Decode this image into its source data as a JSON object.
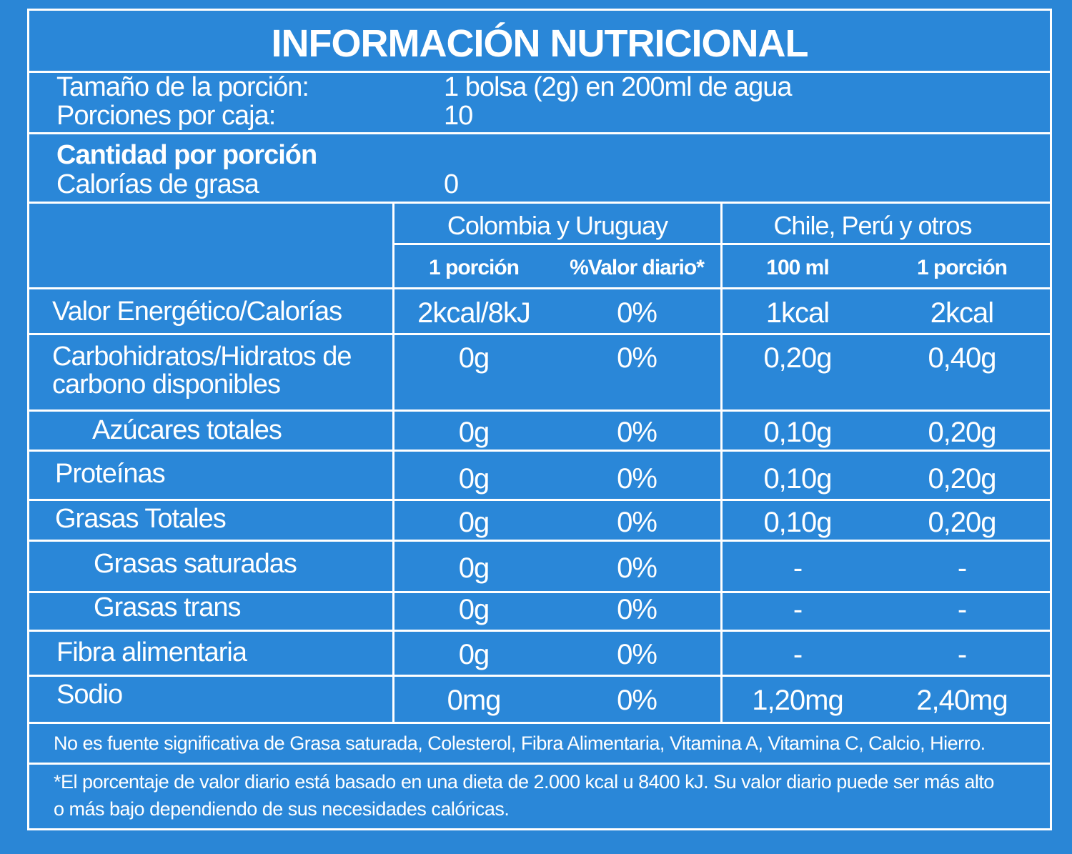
{
  "title": "INFORMACIÓN NUTRICIONAL",
  "serving": {
    "size_label": "Tamaño de la porción:",
    "size_value": "1 bolsa (2g) en 200ml de agua",
    "per_box_label": "Porciones por caja:",
    "per_box_value": "10"
  },
  "amount": {
    "heading": "Cantidad por porción",
    "fat_calories_label": "Calorías de grasa",
    "fat_calories_value": "0"
  },
  "groups": [
    "Colombia y Uruguay",
    "Chile, Perú y otros"
  ],
  "columns": [
    "1 porción",
    "%Valor diario*",
    "100 ml",
    "1 porción"
  ],
  "rows": [
    {
      "label": "Valor Energético/Calorías",
      "values": [
        "2kcal/8kJ",
        "0%",
        "1kcal",
        "2kcal"
      ]
    },
    {
      "label": "Carbohidratos/Hidratos de",
      "label2": "carbono disponibles",
      "values": [
        "0g",
        "0%",
        "0,20g",
        "0,40g"
      ]
    },
    {
      "label": "Azúcares totales",
      "values": [
        "0g",
        "0%",
        "0,10g",
        "0,20g"
      ]
    },
    {
      "label": "Proteínas",
      "values": [
        "0g",
        "0%",
        "0,10g",
        "0,20g"
      ]
    },
    {
      "label": "Grasas Totales",
      "values": [
        "0g",
        "0%",
        "0,10g",
        "0,20g"
      ]
    },
    {
      "label": "Grasas saturadas",
      "values": [
        "0g",
        "0%",
        "-",
        "-"
      ]
    },
    {
      "label": "Grasas trans",
      "values": [
        "0g",
        "0%",
        "-",
        "-"
      ]
    },
    {
      "label": "Fibra alimentaria",
      "values": [
        "0g",
        "0%",
        "-",
        "-"
      ]
    },
    {
      "label": "Sodio",
      "values": [
        "0mg",
        "0%",
        "1,20mg",
        "2,40mg"
      ]
    }
  ],
  "footnote1": "No es fuente significativa de Grasa saturada, Colesterol, Fibra Alimentaria, Vitamina A, Vitamina C, Calcio, Hierro.",
  "footnote2a": "*El porcentaje de valor diario está basado en una dieta de 2.000 kcal u 8400 kJ. Su valor diario puede ser más alto",
  "footnote2b": "o más bajo dependiendo de sus necesidades calóricas."
}
